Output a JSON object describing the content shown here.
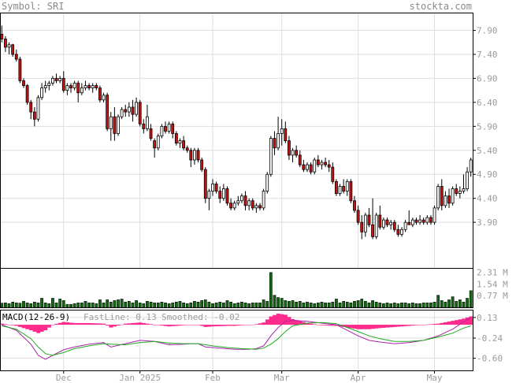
{
  "header": {
    "symbol_label": "Symbol: SRI",
    "brand": "stockta.com"
  },
  "colors": {
    "up": "#ffffff",
    "down": "#cc1111",
    "volume": "#116611",
    "fast_line": "#aa22aa",
    "smoothed_line": "#22aa22",
    "histogram": "#ff2b8c",
    "grid": "#dedede",
    "frame": "#000000"
  },
  "chart_data": {
    "type": "candlestick",
    "title": "Symbol: SRI",
    "price_axis": {
      "ticks": [
        7.9,
        7.4,
        6.9,
        6.4,
        5.9,
        5.4,
        4.9,
        4.4,
        3.9
      ],
      "tick_labels": [
        "7.90",
        "7.40",
        "6.90",
        "6.40",
        "5.90",
        "5.40",
        "4.90",
        "4.40",
        "3.90"
      ],
      "range": [
        2.95,
        8.27
      ]
    },
    "x_labels": [
      {
        "label": "Dec",
        "day": 17
      },
      {
        "label": "Jan 2025",
        "day": 38
      },
      {
        "label": "Feb",
        "day": 58
      },
      {
        "label": "Mar",
        "day": 77
      },
      {
        "label": "Apr",
        "day": 98
      },
      {
        "label": "May",
        "day": 119
      }
    ],
    "candles": [
      [
        0,
        7.82,
        8.0,
        7.65,
        7.72
      ],
      [
        1,
        7.72,
        7.78,
        7.45,
        7.55
      ],
      [
        2,
        7.55,
        7.65,
        7.4,
        7.6
      ],
      [
        3,
        7.6,
        7.62,
        7.35,
        7.4
      ],
      [
        4,
        7.4,
        7.5,
        7.25,
        7.3
      ],
      [
        5,
        7.3,
        7.35,
        6.8,
        6.85
      ],
      [
        6,
        6.85,
        6.9,
        6.7,
        6.75
      ],
      [
        7,
        6.75,
        6.78,
        6.35,
        6.4
      ],
      [
        8,
        6.4,
        6.45,
        6.05,
        6.2
      ],
      [
        9,
        6.2,
        6.3,
        5.9,
        6.05
      ],
      [
        10,
        6.05,
        6.55,
        6.0,
        6.5
      ],
      [
        11,
        6.5,
        6.8,
        6.45,
        6.7
      ],
      [
        12,
        6.7,
        6.85,
        6.6,
        6.75
      ],
      [
        13,
        6.75,
        6.85,
        6.65,
        6.8
      ],
      [
        14,
        6.8,
        6.95,
        6.75,
        6.9
      ],
      [
        15,
        6.9,
        7.0,
        6.8,
        6.85
      ],
      [
        16,
        6.85,
        6.95,
        6.8,
        6.9
      ],
      [
        17,
        6.9,
        7.05,
        6.6,
        6.65
      ],
      [
        18,
        6.65,
        6.8,
        6.55,
        6.75
      ],
      [
        19,
        6.75,
        6.8,
        6.6,
        6.7
      ],
      [
        20,
        6.7,
        6.85,
        6.65,
        6.8
      ],
      [
        21,
        6.8,
        6.85,
        6.4,
        6.6
      ],
      [
        22,
        6.6,
        6.8,
        6.55,
        6.7
      ],
      [
        23,
        6.7,
        6.85,
        6.65,
        6.75
      ],
      [
        24,
        6.75,
        6.8,
        6.65,
        6.7
      ],
      [
        25,
        6.7,
        6.8,
        6.6,
        6.75
      ],
      [
        26,
        6.75,
        6.8,
        6.65,
        6.7
      ],
      [
        27,
        6.7,
        6.75,
        6.4,
        6.45
      ],
      [
        28,
        6.45,
        6.6,
        6.4,
        6.55
      ],
      [
        29,
        6.55,
        6.6,
        5.8,
        5.85
      ],
      [
        30,
        5.85,
        6.2,
        5.6,
        6.1
      ],
      [
        31,
        6.1,
        6.3,
        5.6,
        5.75
      ],
      [
        32,
        5.75,
        6.15,
        5.7,
        6.1
      ],
      [
        33,
        6.1,
        6.3,
        6.05,
        6.25
      ],
      [
        34,
        6.25,
        6.35,
        6.1,
        6.2
      ],
      [
        35,
        6.2,
        6.4,
        6.1,
        6.3
      ],
      [
        36,
        6.3,
        6.45,
        6.0,
        6.15
      ],
      [
        37,
        6.15,
        6.5,
        6.1,
        6.4
      ],
      [
        38,
        6.4,
        6.45,
        5.9,
        5.95
      ],
      [
        39,
        5.95,
        6.05,
        5.75,
        5.85
      ],
      [
        40,
        5.85,
        6.35,
        5.8,
        6.1
      ],
      [
        41,
        5.85,
        5.95,
        5.6,
        5.65
      ],
      [
        42,
        5.6,
        5.65,
        5.25,
        5.45
      ],
      [
        43,
        5.45,
        5.75,
        5.4,
        5.7
      ],
      [
        44,
        5.7,
        5.95,
        5.65,
        5.9
      ],
      [
        45,
        5.9,
        6.0,
        5.75,
        5.8
      ],
      [
        46,
        5.8,
        6.0,
        5.75,
        5.95
      ],
      [
        47,
        5.95,
        6.0,
        5.65,
        5.75
      ],
      [
        48,
        5.75,
        5.8,
        5.5,
        5.55
      ],
      [
        49,
        5.55,
        5.65,
        5.45,
        5.6
      ],
      [
        50,
        5.6,
        5.7,
        5.4,
        5.45
      ],
      [
        51,
        5.45,
        5.5,
        5.35,
        5.4
      ],
      [
        52,
        5.4,
        5.45,
        5.05,
        5.2
      ],
      [
        53,
        5.2,
        5.45,
        5.1,
        5.4
      ],
      [
        54,
        5.4,
        5.45,
        5.15,
        5.2
      ],
      [
        55,
        5.2,
        5.25,
        4.95,
        5.0
      ],
      [
        56,
        5.0,
        5.05,
        4.3,
        4.4
      ],
      [
        57,
        4.4,
        4.6,
        4.15,
        4.55
      ],
      [
        58,
        4.55,
        4.8,
        4.45,
        4.7
      ],
      [
        59,
        4.7,
        4.75,
        4.5,
        4.55
      ],
      [
        60,
        4.55,
        4.65,
        4.3,
        4.4
      ],
      [
        61,
        4.4,
        4.7,
        4.35,
        4.6
      ],
      [
        62,
        4.6,
        4.65,
        4.25,
        4.3
      ],
      [
        63,
        4.3,
        4.4,
        4.15,
        4.2
      ],
      [
        64,
        4.2,
        4.35,
        4.15,
        4.3
      ],
      [
        65,
        4.3,
        4.45,
        4.25,
        4.35
      ],
      [
        66,
        4.35,
        4.5,
        4.3,
        4.45
      ],
      [
        67,
        4.45,
        4.55,
        4.15,
        4.25
      ],
      [
        68,
        4.25,
        4.4,
        4.15,
        4.35
      ],
      [
        69,
        4.35,
        4.4,
        4.15,
        4.2
      ],
      [
        70,
        4.2,
        4.3,
        4.1,
        4.25
      ],
      [
        71,
        4.25,
        4.3,
        4.15,
        4.2
      ],
      [
        72,
        4.2,
        4.6,
        4.15,
        4.55
      ],
      [
        73,
        4.55,
        4.95,
        4.5,
        4.9
      ],
      [
        74,
        4.9,
        5.7,
        4.85,
        5.65
      ],
      [
        75,
        5.65,
        5.8,
        5.3,
        5.45
      ],
      [
        76,
        5.45,
        6.1,
        5.4,
        5.75
      ],
      [
        77,
        5.75,
        6.05,
        5.5,
        5.85
      ],
      [
        78,
        5.85,
        6.0,
        5.55,
        5.6
      ],
      [
        79,
        5.6,
        5.7,
        5.2,
        5.3
      ],
      [
        80,
        5.3,
        5.45,
        5.15,
        5.4
      ],
      [
        81,
        5.4,
        5.5,
        5.25,
        5.3
      ],
      [
        82,
        5.3,
        5.4,
        5.05,
        5.1
      ],
      [
        83,
        5.1,
        5.2,
        4.95,
        5.0
      ],
      [
        84,
        5.0,
        5.15,
        4.95,
        5.1
      ],
      [
        85,
        5.1,
        5.15,
        4.9,
        4.95
      ],
      [
        86,
        4.95,
        5.25,
        4.9,
        5.2
      ],
      [
        87,
        5.2,
        5.3,
        5.05,
        5.1
      ],
      [
        88,
        5.1,
        5.2,
        5.0,
        5.15
      ],
      [
        89,
        5.15,
        5.25,
        5.05,
        5.1
      ],
      [
        90,
        5.1,
        5.2,
        4.95,
        5.05
      ],
      [
        91,
        5.05,
        5.15,
        4.7,
        4.75
      ],
      [
        92,
        4.75,
        4.8,
        4.45,
        4.5
      ],
      [
        93,
        4.5,
        4.7,
        4.45,
        4.65
      ],
      [
        94,
        4.65,
        4.8,
        4.5,
        4.55
      ],
      [
        95,
        4.55,
        4.8,
        4.45,
        4.75
      ],
      [
        96,
        4.75,
        4.8,
        4.3,
        4.35
      ],
      [
        97,
        4.35,
        4.45,
        4.1,
        4.15
      ],
      [
        98,
        4.15,
        4.25,
        3.85,
        3.9
      ],
      [
        99,
        3.9,
        4.05,
        3.55,
        3.7
      ],
      [
        100,
        3.7,
        4.1,
        3.6,
        4.05
      ],
      [
        101,
        4.05,
        4.2,
        3.8,
        3.85
      ],
      [
        102,
        3.85,
        4.4,
        3.55,
        3.6
      ],
      [
        103,
        3.6,
        4.1,
        3.55,
        4.05
      ],
      [
        104,
        4.05,
        4.25,
        3.75,
        3.8
      ],
      [
        105,
        3.8,
        4.0,
        3.75,
        3.95
      ],
      [
        106,
        3.95,
        4.0,
        3.8,
        3.85
      ],
      [
        107,
        3.85,
        3.95,
        3.75,
        3.9
      ],
      [
        108,
        3.9,
        3.95,
        3.7,
        3.75
      ],
      [
        109,
        3.75,
        3.85,
        3.6,
        3.65
      ],
      [
        110,
        3.65,
        3.8,
        3.6,
        3.75
      ],
      [
        111,
        3.75,
        3.95,
        3.7,
        3.9
      ],
      [
        112,
        3.9,
        4.15,
        3.85,
        3.85
      ],
      [
        113,
        3.85,
        4.0,
        3.8,
        3.95
      ],
      [
        114,
        3.95,
        4.0,
        3.85,
        3.9
      ],
      [
        115,
        3.9,
        4.05,
        3.85,
        3.95
      ],
      [
        116,
        3.95,
        4.0,
        3.85,
        3.9
      ],
      [
        117,
        3.9,
        4.05,
        3.85,
        4.0
      ],
      [
        118,
        4.0,
        4.05,
        3.85,
        3.9
      ],
      [
        119,
        3.9,
        4.25,
        3.85,
        4.2
      ],
      [
        120,
        4.2,
        4.7,
        4.15,
        4.65
      ],
      [
        121,
        4.65,
        4.8,
        4.15,
        4.25
      ],
      [
        122,
        4.25,
        4.55,
        4.2,
        4.45
      ],
      [
        123,
        4.45,
        4.6,
        4.2,
        4.3
      ],
      [
        124,
        4.3,
        4.65,
        4.25,
        4.6
      ],
      [
        125,
        4.6,
        4.7,
        4.45,
        4.5
      ],
      [
        126,
        4.5,
        4.65,
        4.4,
        4.55
      ],
      [
        127,
        4.55,
        4.9,
        4.5,
        4.6
      ],
      [
        128,
        4.6,
        5.05,
        4.55,
        4.95
      ],
      [
        129,
        4.95,
        5.25,
        4.85,
        5.2
      ]
    ],
    "volume_axis": {
      "tick_labels": [
        "2.31 M",
        "1.54 M",
        "0.77 M"
      ],
      "ticks": [
        2.31,
        1.54,
        0.77
      ],
      "range": [
        0,
        2.6
      ]
    },
    "volume": [
      0.28,
      0.3,
      0.25,
      0.35,
      0.3,
      0.28,
      0.4,
      0.3,
      0.25,
      0.35,
      0.3,
      0.6,
      0.3,
      0.25,
      0.6,
      0.3,
      0.55,
      0.45,
      0.2,
      0.2,
      0.25,
      0.3,
      0.3,
      0.4,
      0.3,
      0.3,
      0.25,
      0.5,
      0.3,
      0.5,
      0.35,
      0.45,
      0.5,
      0.55,
      0.35,
      0.4,
      0.3,
      0.45,
      0.3,
      0.25,
      0.4,
      0.35,
      0.3,
      0.3,
      0.35,
      0.3,
      0.25,
      0.3,
      0.35,
      0.4,
      0.3,
      0.25,
      0.3,
      0.4,
      0.35,
      0.45,
      0.5,
      0.35,
      0.25,
      0.3,
      0.35,
      0.3,
      0.45,
      0.35,
      0.25,
      0.3,
      0.35,
      0.3,
      0.25,
      0.3,
      0.3,
      0.3,
      0.5,
      0.4,
      2.3,
      0.8,
      0.65,
      0.6,
      0.45,
      0.4,
      0.45,
      0.35,
      0.4,
      0.3,
      0.35,
      0.3,
      0.25,
      0.3,
      0.35,
      0.3,
      0.3,
      0.35,
      0.55,
      0.3,
      0.4,
      0.35,
      0.3,
      0.4,
      0.45,
      0.55,
      0.4,
      0.3,
      0.45,
      0.35,
      0.3,
      0.25,
      0.3,
      0.25,
      0.3,
      0.25,
      0.3,
      0.3,
      0.25,
      0.3,
      0.25,
      0.25,
      0.3,
      0.3,
      0.3,
      0.35,
      0.8,
      0.45,
      0.35,
      0.5,
      0.7,
      0.4,
      0.5,
      0.35,
      0.6,
      1.1
    ],
    "macd": {
      "label": "MACD(12-26-9)",
      "fast_label": "FastLine: 0.13",
      "smoothed_label": "Smoothed: -0.02",
      "fast_value": 0.13,
      "smoothed_value": -0.02,
      "axis_labels": [
        "0.13",
        "-0.24",
        "-0.60"
      ],
      "axis_ticks": [
        0.13,
        -0.24,
        -0.6
      ],
      "range": [
        -0.82,
        0.27
      ],
      "fast_points": [
        [
          0,
          0.0
        ],
        [
          4,
          -0.1
        ],
        [
          8,
          -0.35
        ],
        [
          10,
          -0.55
        ],
        [
          12,
          -0.62
        ],
        [
          14,
          -0.55
        ],
        [
          17,
          -0.45
        ],
        [
          20,
          -0.4
        ],
        [
          24,
          -0.35
        ],
        [
          28,
          -0.32
        ],
        [
          30,
          -0.4
        ],
        [
          34,
          -0.34
        ],
        [
          38,
          -0.28
        ],
        [
          42,
          -0.3
        ],
        [
          46,
          -0.36
        ],
        [
          50,
          -0.35
        ],
        [
          52,
          -0.34
        ],
        [
          54,
          -0.34
        ],
        [
          56,
          -0.4
        ],
        [
          60,
          -0.42
        ],
        [
          64,
          -0.44
        ],
        [
          68,
          -0.44
        ],
        [
          70,
          -0.43
        ],
        [
          72,
          -0.38
        ],
        [
          74,
          -0.2
        ],
        [
          76,
          -0.05
        ],
        [
          78,
          0.06
        ],
        [
          80,
          0.08
        ],
        [
          84,
          0.06
        ],
        [
          88,
          0.03
        ],
        [
          92,
          0.0
        ],
        [
          95,
          -0.1
        ],
        [
          98,
          -0.2
        ],
        [
          101,
          -0.28
        ],
        [
          104,
          -0.31
        ],
        [
          108,
          -0.34
        ],
        [
          112,
          -0.32
        ],
        [
          116,
          -0.28
        ],
        [
          120,
          -0.2
        ],
        [
          124,
          -0.08
        ],
        [
          127,
          0.05
        ],
        [
          129,
          0.13
        ]
      ],
      "smoothed_points": [
        [
          0,
          -0.02
        ],
        [
          4,
          -0.08
        ],
        [
          8,
          -0.25
        ],
        [
          10,
          -0.4
        ],
        [
          12,
          -0.52
        ],
        [
          14,
          -0.55
        ],
        [
          17,
          -0.5
        ],
        [
          20,
          -0.43
        ],
        [
          24,
          -0.38
        ],
        [
          28,
          -0.34
        ],
        [
          30,
          -0.35
        ],
        [
          34,
          -0.36
        ],
        [
          38,
          -0.32
        ],
        [
          42,
          -0.3
        ],
        [
          46,
          -0.33
        ],
        [
          50,
          -0.34
        ],
        [
          54,
          -0.34
        ],
        [
          58,
          -0.38
        ],
        [
          62,
          -0.41
        ],
        [
          66,
          -0.43
        ],
        [
          70,
          -0.44
        ],
        [
          72,
          -0.42
        ],
        [
          74,
          -0.35
        ],
        [
          76,
          -0.25
        ],
        [
          78,
          -0.12
        ],
        [
          80,
          -0.02
        ],
        [
          84,
          0.03
        ],
        [
          88,
          0.04
        ],
        [
          92,
          0.02
        ],
        [
          95,
          -0.05
        ],
        [
          98,
          -0.12
        ],
        [
          101,
          -0.2
        ],
        [
          104,
          -0.25
        ],
        [
          108,
          -0.3
        ],
        [
          112,
          -0.3
        ],
        [
          116,
          -0.28
        ],
        [
          120,
          -0.22
        ],
        [
          124,
          -0.15
        ],
        [
          127,
          -0.06
        ],
        [
          129,
          -0.02
        ]
      ]
    }
  }
}
